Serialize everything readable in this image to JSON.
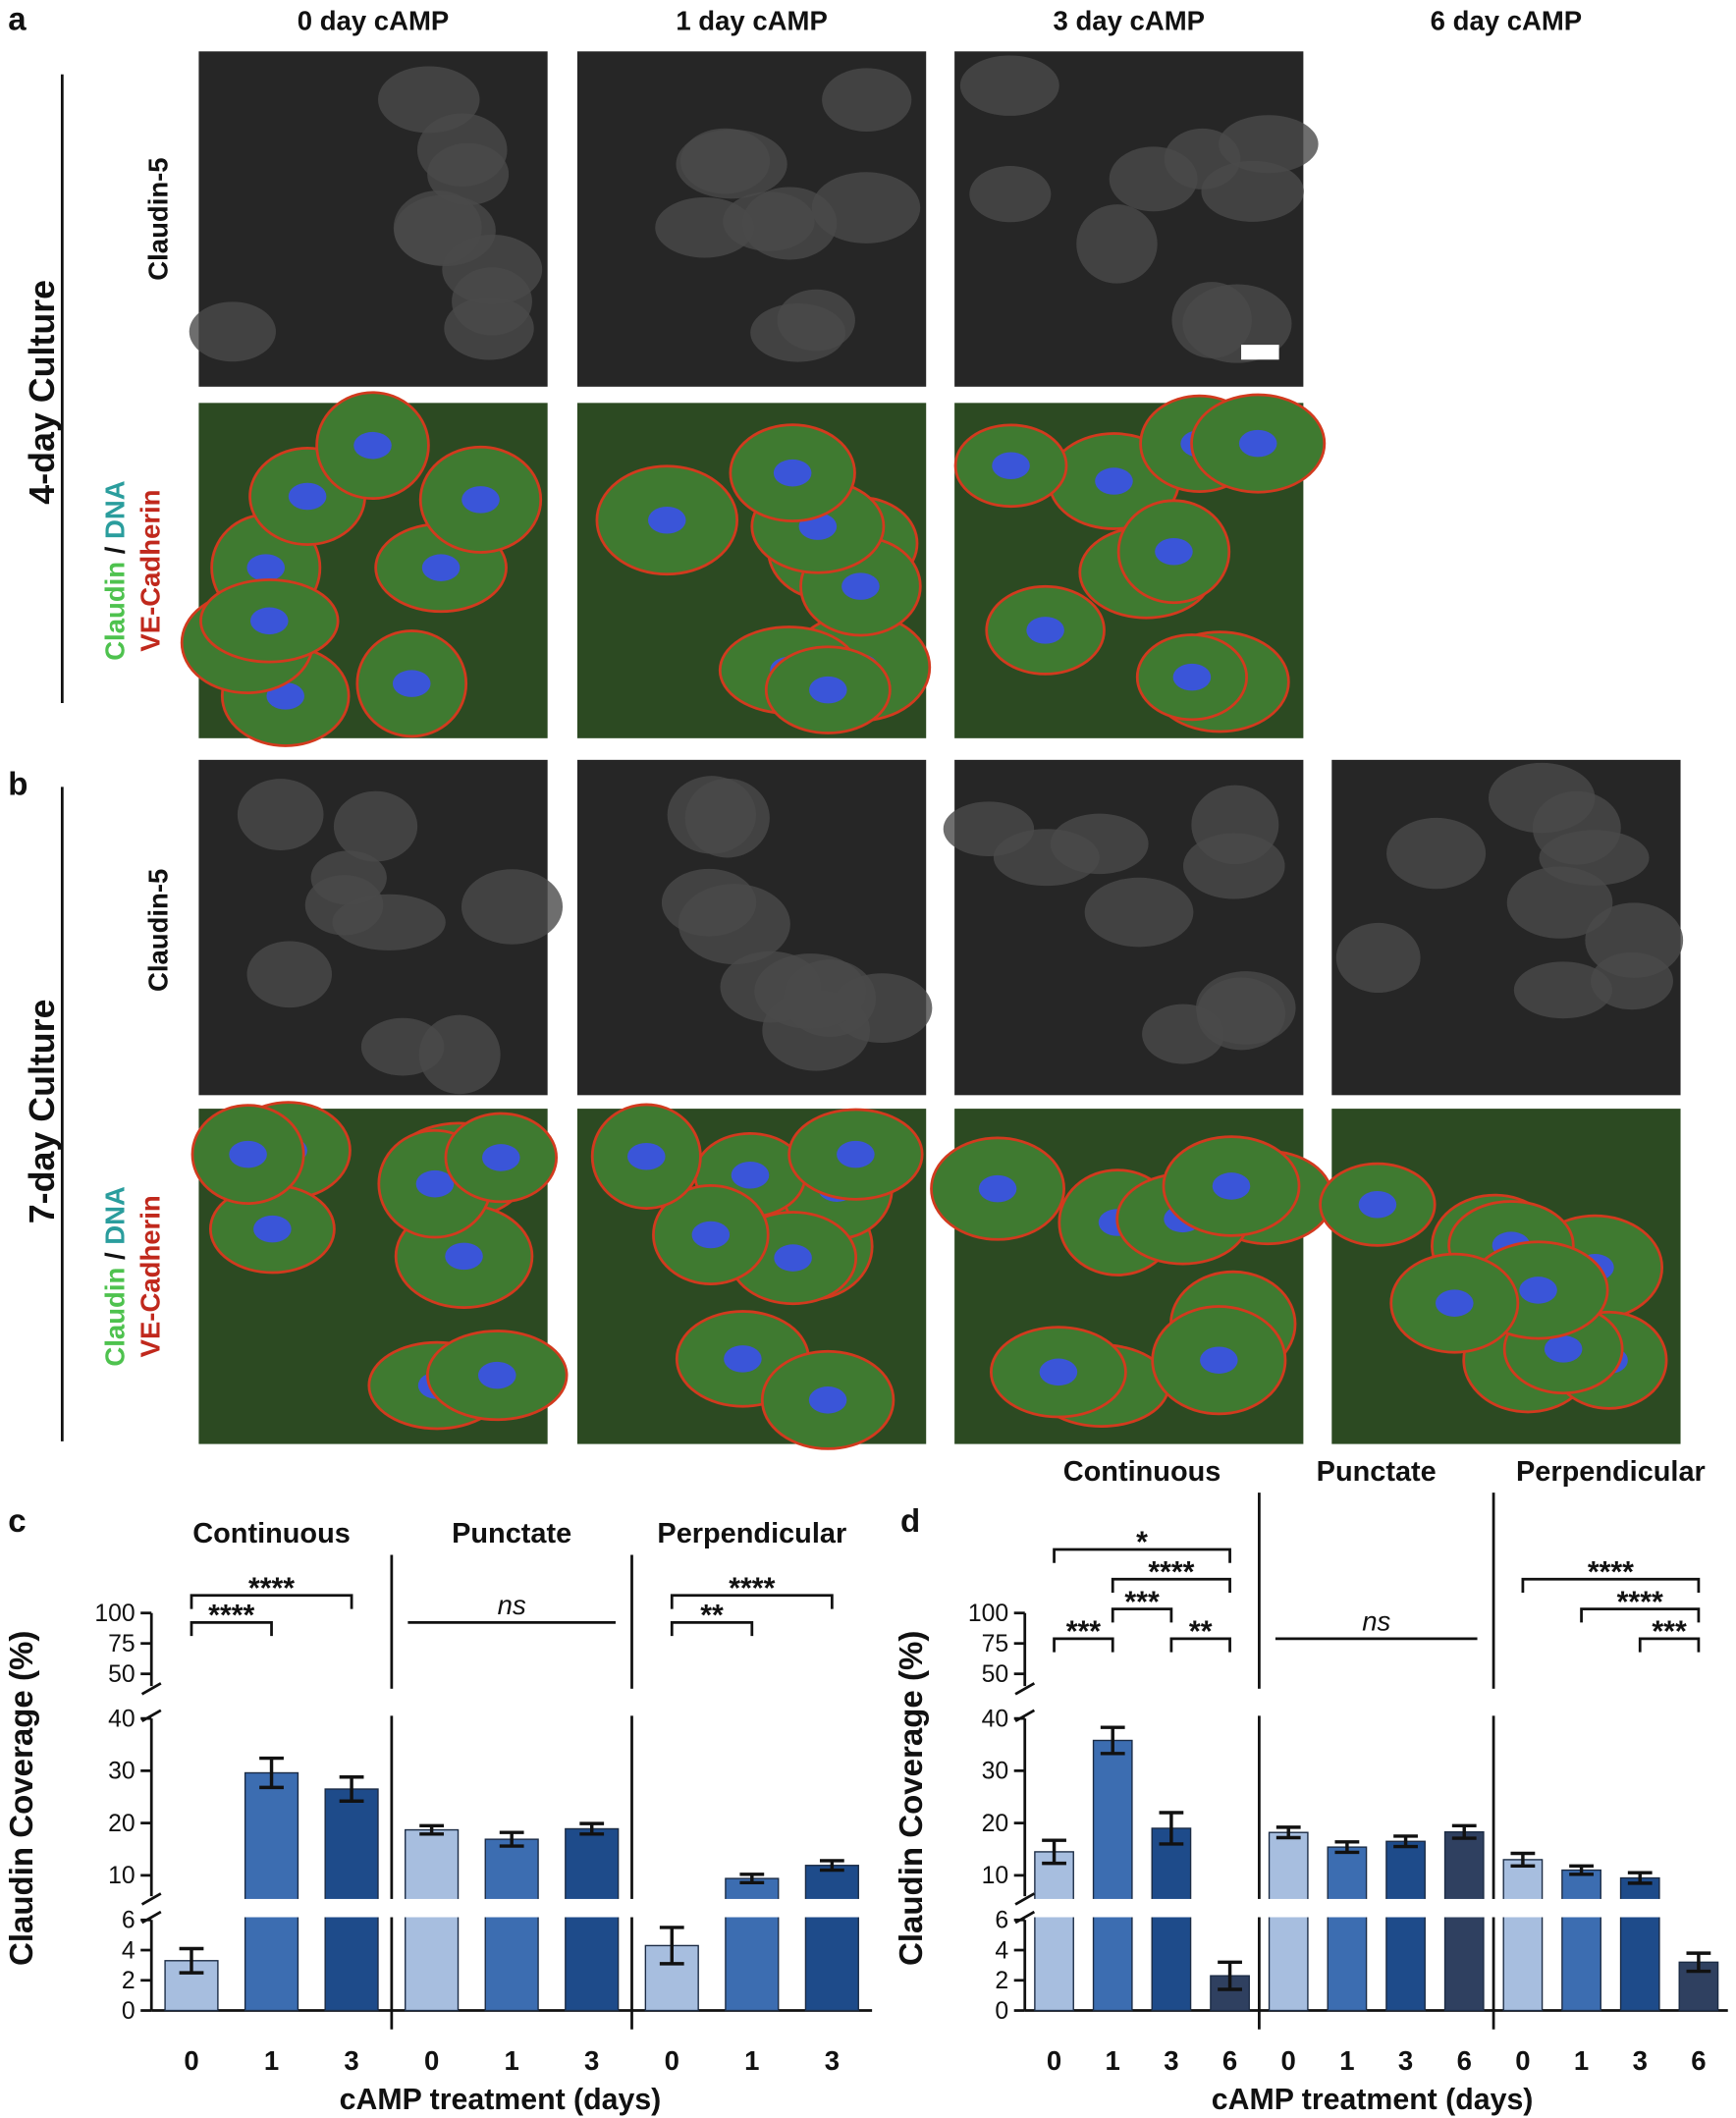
{
  "panel_labels": [
    "a",
    "b",
    "c",
    "d"
  ],
  "column_headers": [
    "0 day cAMP",
    "1 day cAMP",
    "3 day cAMP",
    "6 day cAMP"
  ],
  "row_labels": [
    "4-day Culture",
    "7-day Culture"
  ],
  "stain_labels": {
    "single": "Claudin-5",
    "claudin": "Claudin",
    "slash": "/",
    "dna": "DNA",
    "vecad": "VE-Cadherin"
  },
  "chart_data": [
    {
      "type": "bar",
      "y_label": "Claudin Coverage (%)",
      "x_label": "cAMP treatment (days)",
      "categories": [
        "0",
        "1",
        "3"
      ],
      "colors": [
        "#a7bedf",
        "#3c6db1",
        "#1e4b8a"
      ],
      "ylim": [
        0,
        100
      ],
      "y_segments": [
        [
          0,
          6
        ],
        [
          6,
          40
        ],
        [
          40,
          100
        ]
      ],
      "yticks": [
        0,
        2,
        4,
        6,
        10,
        20,
        30,
        40,
        50,
        75,
        100
      ],
      "series": [
        {
          "name": "Continuous",
          "values": [
            3.3,
            29.6,
            26.5
          ],
          "errors": [
            0.8,
            2.8,
            2.3
          ],
          "annotations": [
            {
              "text": "****",
              "from": 0,
              "to": 1
            },
            {
              "text": "****",
              "from": 0,
              "to": 2
            }
          ]
        },
        {
          "name": "Punctate",
          "values": [
            18.7,
            16.9,
            18.9
          ],
          "errors": [
            0.8,
            1.3,
            1.0
          ],
          "annotations": [
            {
              "text": "ns",
              "from": 0,
              "to": 2,
              "bracket": false
            }
          ]
        },
        {
          "name": "Perpendicular",
          "values": [
            4.3,
            9.4,
            11.9
          ],
          "errors": [
            1.2,
            0.8,
            0.9
          ],
          "annotations": [
            {
              "text": "**",
              "from": 0,
              "to": 1
            },
            {
              "text": "****",
              "from": 0,
              "to": 2
            }
          ]
        }
      ]
    },
    {
      "type": "bar",
      "y_label": "Claudin Coverage (%)",
      "x_label": "cAMP treatment (days)",
      "categories": [
        "0",
        "1",
        "3",
        "6"
      ],
      "colors": [
        "#a7bedf",
        "#3c6db1",
        "#1e4b8a",
        "#2f4060"
      ],
      "ylim": [
        0,
        100
      ],
      "y_segments": [
        [
          0,
          6
        ],
        [
          6,
          40
        ],
        [
          40,
          100
        ]
      ],
      "yticks": [
        0,
        2,
        4,
        6,
        10,
        20,
        30,
        40,
        50,
        75,
        100
      ],
      "series": [
        {
          "name": "Continuous",
          "values": [
            14.5,
            35.8,
            19.0,
            2.3
          ],
          "errors": [
            2.2,
            2.5,
            3.0,
            0.9
          ],
          "annotations": [
            {
              "text": "***",
              "from": 0,
              "to": 1
            },
            {
              "text": "**",
              "from": 2,
              "to": 3
            },
            {
              "text": "***",
              "from": 1,
              "to": 2
            },
            {
              "text": "****",
              "from": 1,
              "to": 3
            },
            {
              "text": "*",
              "from": 0,
              "to": 3
            }
          ]
        },
        {
          "name": "Punctate",
          "values": [
            18.2,
            15.4,
            16.5,
            18.3
          ],
          "errors": [
            1.0,
            1.0,
            1.0,
            1.2
          ],
          "annotations": [
            {
              "text": "ns",
              "from": 0,
              "to": 3,
              "bracket": false
            }
          ]
        },
        {
          "name": "Perpendicular",
          "values": [
            13.0,
            11.0,
            9.5,
            3.2
          ],
          "errors": [
            1.2,
            0.8,
            1.0,
            0.6
          ],
          "annotations": [
            {
              "text": "***",
              "from": 2,
              "to": 3
            },
            {
              "text": "****",
              "from": 1,
              "to": 3
            },
            {
              "text": "****",
              "from": 0,
              "to": 3
            }
          ]
        }
      ]
    }
  ]
}
